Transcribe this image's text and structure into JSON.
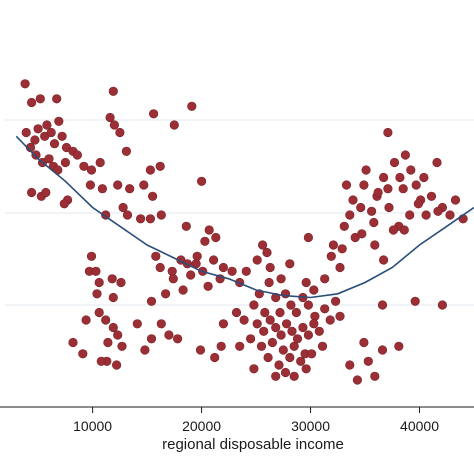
{
  "chart_data": {
    "type": "scatter",
    "xlabel": "regional disposable income",
    "ylabel": "",
    "x_ticks": [
      10000,
      20000,
      30000,
      40000
    ],
    "x_tick_labels": [
      "10000",
      "20000",
      "30000",
      "40000"
    ],
    "xlim": [
      1500,
      45000
    ],
    "ylim": [
      0,
      1
    ],
    "grid": true,
    "colors": {
      "points": "#9b2f35",
      "points_edge": "#7a2228",
      "fit_line": "#2a4d7a",
      "grid": "#e8edf1",
      "axis": "#1a1a1a"
    },
    "series": [
      {
        "type": "scatter",
        "points": [
          [
            3800,
            0.83
          ],
          [
            4400,
            0.78
          ],
          [
            5200,
            0.79
          ],
          [
            6700,
            0.79
          ],
          [
            11900,
            0.81
          ],
          [
            15600,
            0.75
          ],
          [
            19100,
            0.77
          ],
          [
            17500,
            0.72
          ],
          [
            3900,
            0.7
          ],
          [
            4300,
            0.66
          ],
          [
            4700,
            0.68
          ],
          [
            5000,
            0.71
          ],
          [
            5600,
            0.69
          ],
          [
            5800,
            0.72
          ],
          [
            6200,
            0.7
          ],
          [
            6500,
            0.67
          ],
          [
            6900,
            0.73
          ],
          [
            7200,
            0.69
          ],
          [
            7600,
            0.66
          ],
          [
            8200,
            0.65
          ],
          [
            4800,
            0.64
          ],
          [
            5400,
            0.62
          ],
          [
            6000,
            0.63
          ],
          [
            6400,
            0.61
          ],
          [
            6800,
            0.6
          ],
          [
            7500,
            0.62
          ],
          [
            8600,
            0.64
          ],
          [
            9200,
            0.61
          ],
          [
            9900,
            0.6
          ],
          [
            10700,
            0.62
          ],
          [
            11600,
            0.74
          ],
          [
            12000,
            0.72
          ],
          [
            12500,
            0.7
          ],
          [
            13100,
            0.65
          ],
          [
            15300,
            0.6
          ],
          [
            16200,
            0.61
          ],
          [
            20000,
            0.57
          ],
          [
            5300,
            0.53
          ],
          [
            5700,
            0.54
          ],
          [
            7700,
            0.52
          ],
          [
            9800,
            0.56
          ],
          [
            10900,
            0.55
          ],
          [
            12300,
            0.56
          ],
          [
            13400,
            0.55
          ],
          [
            14700,
            0.56
          ],
          [
            15500,
            0.53
          ],
          [
            4400,
            0.54
          ],
          [
            7400,
            0.51
          ],
          [
            12800,
            0.5
          ],
          [
            13200,
            0.48
          ],
          [
            14400,
            0.47
          ],
          [
            15300,
            0.47
          ],
          [
            16300,
            0.48
          ],
          [
            18600,
            0.45
          ],
          [
            11200,
            0.48
          ],
          [
            20700,
            0.44
          ],
          [
            21300,
            0.42
          ],
          [
            20300,
            0.41
          ],
          [
            9900,
            0.37
          ],
          [
            9700,
            0.33
          ],
          [
            10300,
            0.33
          ],
          [
            10600,
            0.3
          ],
          [
            11800,
            0.31
          ],
          [
            12600,
            0.3
          ],
          [
            10400,
            0.27
          ],
          [
            11900,
            0.26
          ],
          [
            15800,
            0.37
          ],
          [
            16200,
            0.34
          ],
          [
            17300,
            0.33
          ],
          [
            18100,
            0.36
          ],
          [
            18700,
            0.35
          ],
          [
            19000,
            0.32
          ],
          [
            19500,
            0.35
          ],
          [
            20100,
            0.33
          ],
          [
            19600,
            0.37
          ],
          [
            21100,
            0.36
          ],
          [
            22000,
            0.34
          ],
          [
            22800,
            0.33
          ],
          [
            23500,
            0.3
          ],
          [
            21700,
            0.31
          ],
          [
            20600,
            0.29
          ],
          [
            18300,
            0.28
          ],
          [
            17400,
            0.31
          ],
          [
            16700,
            0.27
          ],
          [
            15400,
            0.25
          ],
          [
            9400,
            0.2
          ],
          [
            10600,
            0.22
          ],
          [
            11200,
            0.2
          ],
          [
            11900,
            0.18
          ],
          [
            14100,
            0.19
          ],
          [
            12300,
            0.16
          ],
          [
            17000,
            0.16
          ],
          [
            16300,
            0.19
          ],
          [
            15400,
            0.15
          ],
          [
            8200,
            0.14
          ],
          [
            9100,
            0.11
          ],
          [
            11400,
            0.14
          ],
          [
            12700,
            0.13
          ],
          [
            14800,
            0.12
          ],
          [
            11300,
            0.09
          ],
          [
            12200,
            0.08
          ],
          [
            10800,
            0.09
          ],
          [
            17800,
            0.15
          ],
          [
            19900,
            0.12
          ],
          [
            21800,
            0.13
          ],
          [
            21200,
            0.1
          ],
          [
            23500,
            0.13
          ],
          [
            22000,
            0.19
          ],
          [
            23200,
            0.22
          ],
          [
            23900,
            0.2
          ],
          [
            24800,
            0.24
          ],
          [
            25300,
            0.27
          ],
          [
            25800,
            0.22
          ],
          [
            26200,
            0.3
          ],
          [
            26800,
            0.26
          ],
          [
            27200,
            0.22
          ],
          [
            27700,
            0.27
          ],
          [
            28200,
            0.24
          ],
          [
            28700,
            0.22
          ],
          [
            29300,
            0.26
          ],
          [
            29800,
            0.24
          ],
          [
            30400,
            0.21
          ],
          [
            25100,
            0.19
          ],
          [
            25700,
            0.17
          ],
          [
            26300,
            0.2
          ],
          [
            26800,
            0.18
          ],
          [
            27300,
            0.16
          ],
          [
            27800,
            0.19
          ],
          [
            28300,
            0.17
          ],
          [
            28800,
            0.15
          ],
          [
            29300,
            0.18
          ],
          [
            29800,
            0.16
          ],
          [
            30300,
            0.19
          ],
          [
            30800,
            0.17
          ],
          [
            24500,
            0.15
          ],
          [
            25500,
            0.13
          ],
          [
            26500,
            0.14
          ],
          [
            27500,
            0.12
          ],
          [
            28500,
            0.13
          ],
          [
            29500,
            0.11
          ],
          [
            26100,
            0.1
          ],
          [
            27100,
            0.08
          ],
          [
            28100,
            0.1
          ],
          [
            29100,
            0.09
          ],
          [
            30100,
            0.11
          ],
          [
            31100,
            0.13
          ],
          [
            31800,
            0.2
          ],
          [
            31300,
            0.23
          ],
          [
            32300,
            0.25
          ],
          [
            32700,
            0.21
          ],
          [
            26300,
            0.34
          ],
          [
            25100,
            0.36
          ],
          [
            28100,
            0.35
          ],
          [
            27300,
            0.31
          ],
          [
            29600,
            0.3
          ],
          [
            31300,
            0.31
          ],
          [
            30300,
            0.28
          ],
          [
            27700,
            0.06
          ],
          [
            28500,
            0.05
          ],
          [
            24800,
            0.07
          ],
          [
            26800,
            0.05
          ],
          [
            29600,
            0.07
          ],
          [
            25600,
            0.4
          ],
          [
            26000,
            0.38
          ],
          [
            24100,
            0.33
          ],
          [
            29800,
            0.42
          ],
          [
            32900,
            0.39
          ],
          [
            32100,
            0.4
          ],
          [
            33100,
            0.45
          ],
          [
            33600,
            0.48
          ],
          [
            33900,
            0.52
          ],
          [
            34600,
            0.5
          ],
          [
            34900,
            0.56
          ],
          [
            35600,
            0.49
          ],
          [
            36100,
            0.53
          ],
          [
            36700,
            0.58
          ],
          [
            37100,
            0.55
          ],
          [
            37700,
            0.62
          ],
          [
            38200,
            0.58
          ],
          [
            38700,
            0.64
          ],
          [
            39200,
            0.6
          ],
          [
            39700,
            0.56
          ],
          [
            40100,
            0.52
          ],
          [
            40600,
            0.48
          ],
          [
            41100,
            0.53
          ],
          [
            41600,
            0.62
          ],
          [
            42100,
            0.5
          ],
          [
            42800,
            0.48
          ],
          [
            43300,
            0.52
          ],
          [
            44000,
            0.47
          ],
          [
            35100,
            0.6
          ],
          [
            36200,
            0.54
          ],
          [
            37200,
            0.5
          ],
          [
            38100,
            0.45
          ],
          [
            39100,
            0.48
          ],
          [
            39900,
            0.51
          ],
          [
            40400,
            0.58
          ],
          [
            35800,
            0.46
          ],
          [
            37600,
            0.44
          ],
          [
            34100,
            0.42
          ],
          [
            33300,
            0.56
          ],
          [
            34700,
            0.43
          ],
          [
            35900,
            0.4
          ],
          [
            36700,
            0.36
          ],
          [
            37100,
            0.7
          ],
          [
            38500,
            0.55
          ],
          [
            32700,
            0.34
          ],
          [
            31900,
            0.37
          ],
          [
            33600,
            0.08
          ],
          [
            35300,
            0.09
          ],
          [
            35900,
            0.05
          ],
          [
            36600,
            0.12
          ],
          [
            34300,
            0.04
          ],
          [
            34900,
            0.14
          ],
          [
            38100,
            0.13
          ],
          [
            39600,
            0.25
          ],
          [
            42100,
            0.24
          ],
          [
            41700,
            0.49
          ],
          [
            38600,
            0.44
          ],
          [
            36600,
            0.24
          ]
        ]
      },
      {
        "type": "line",
        "fit": "quadratic",
        "points": [
          [
            3000,
            0.69
          ],
          [
            5000,
            0.63
          ],
          [
            7500,
            0.57
          ],
          [
            10000,
            0.5
          ],
          [
            12500,
            0.45
          ],
          [
            15000,
            0.4
          ],
          [
            17500,
            0.365
          ],
          [
            20000,
            0.33
          ],
          [
            22500,
            0.31
          ],
          [
            25000,
            0.28
          ],
          [
            27500,
            0.265
          ],
          [
            30000,
            0.26
          ],
          [
            32500,
            0.27
          ],
          [
            35000,
            0.3
          ],
          [
            37500,
            0.34
          ],
          [
            40000,
            0.4
          ],
          [
            42500,
            0.45
          ],
          [
            45000,
            0.5
          ]
        ]
      }
    ]
  }
}
